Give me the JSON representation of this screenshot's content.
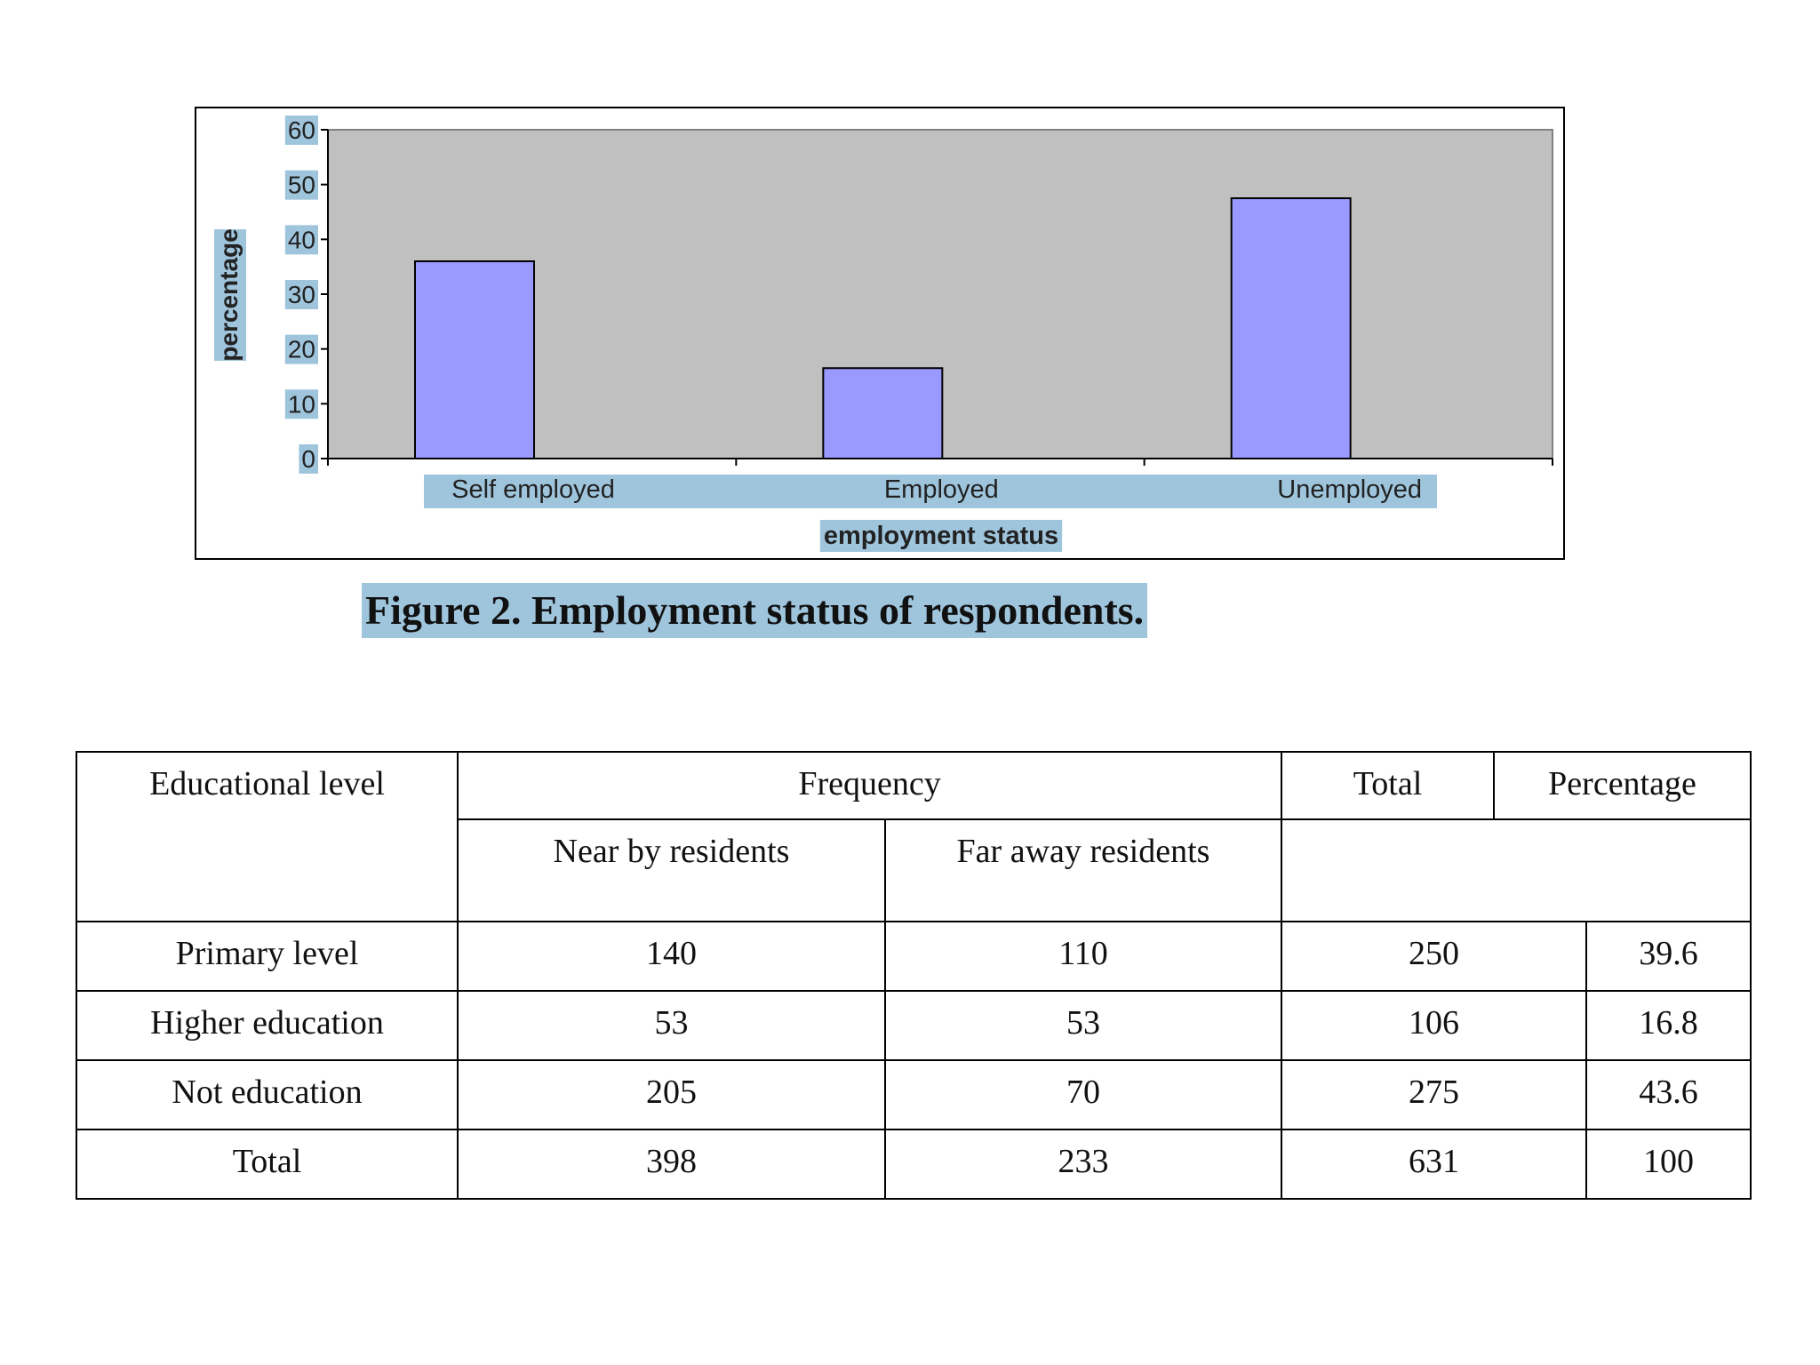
{
  "chart_data": {
    "type": "bar",
    "categories": [
      "Self employed",
      "Employed",
      "Unemployed"
    ],
    "values": [
      36,
      16.5,
      47.5
    ],
    "xlabel": "employment status",
    "ylabel": "percentage",
    "ylim": [
      0,
      60
    ],
    "yticks": [
      "0",
      "10",
      "20",
      "30",
      "40",
      "50",
      "60"
    ],
    "grid": false,
    "colors": {
      "bar": "#9999ff",
      "plot_background": "#c0c0c0"
    }
  },
  "caption": "Figure 2. Employment status of respondents.",
  "table": {
    "headers": {
      "educational_level": "Educational level",
      "frequency": "Frequency",
      "total": "Total",
      "percentage": "Percentage",
      "near_by": "Near by residents",
      "far_away": "Far away residents"
    },
    "rows": [
      [
        "Primary level",
        "140",
        "110",
        "250",
        "39.6"
      ],
      [
        "Higher education",
        "53",
        "53",
        "106",
        "16.8"
      ],
      [
        "Not education",
        "205",
        "70",
        "275",
        "43.6"
      ],
      [
        "Total",
        "398",
        "233",
        "631",
        "100"
      ]
    ]
  }
}
